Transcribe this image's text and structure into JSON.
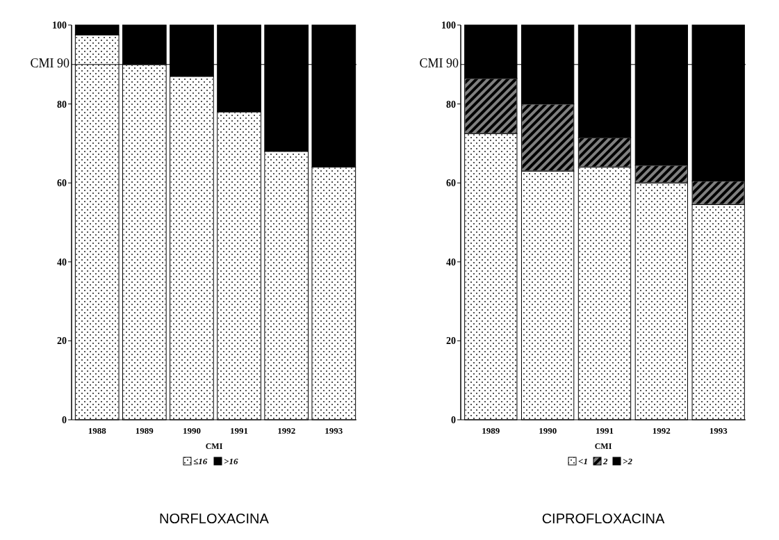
{
  "chart_data": [
    {
      "type": "bar",
      "title": "NORFLOXACINA",
      "legend_title": "CMI",
      "categories": [
        "1988",
        "1989",
        "1990",
        "1991",
        "1992",
        "1993"
      ],
      "stacked": true,
      "ylim": [
        0,
        100
      ],
      "yticks": [
        0,
        20,
        40,
        60,
        80,
        100
      ],
      "legend": "bottom",
      "ref_lines": [
        {
          "axis": "y",
          "value": 90,
          "label": "CMI 90"
        }
      ],
      "series": [
        {
          "name": "≤16",
          "color": "#ffffff",
          "values": [
            97.5,
            90,
            87,
            78,
            68,
            64
          ]
        },
        {
          "name": ">16",
          "color": "#000000",
          "values": [
            2.5,
            10,
            13,
            22,
            32,
            36
          ]
        }
      ]
    },
    {
      "type": "bar",
      "title": "CIPROFLOXACINA",
      "legend_title": "CMI",
      "categories": [
        "1989",
        "1990",
        "1991",
        "1992",
        "1993"
      ],
      "stacked": true,
      "ylim": [
        0,
        100
      ],
      "yticks": [
        0,
        20,
        40,
        60,
        80,
        100
      ],
      "legend": "bottom",
      "ref_lines": [
        {
          "axis": "y",
          "value": 90,
          "label": "CMI 90"
        }
      ],
      "series": [
        {
          "name": "<1",
          "color": "#ffffff",
          "values": [
            72.5,
            63,
            64,
            60,
            54.5
          ]
        },
        {
          "name": "2",
          "color": "#808080",
          "values": [
            14,
            17,
            7.5,
            4.5,
            6
          ]
        },
        {
          "name": ">2",
          "color": "#000000",
          "values": [
            13.5,
            20,
            28.5,
            35.5,
            39.5
          ]
        }
      ]
    }
  ]
}
